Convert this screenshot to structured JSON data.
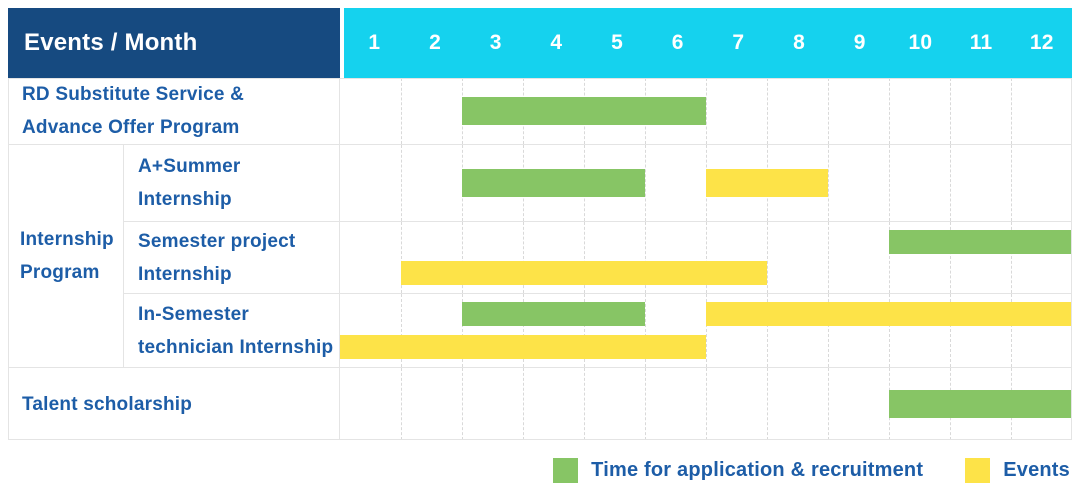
{
  "colors": {
    "header_bg": "#164a80",
    "months_bg": "#15d2ee",
    "recruitment": "#87c565",
    "events": "#fde348",
    "label_text": "#1d5da7"
  },
  "header": {
    "corner_label": "Events / Month"
  },
  "labels": {
    "rd": [
      "RD Substitute Service &",
      "Advance Offer Program"
    ],
    "group_internship": [
      "Internship",
      "Program"
    ],
    "a_summer": [
      "A+Summer",
      "Internship"
    ],
    "semester": [
      "Semester project",
      "Internship"
    ],
    "in_semester": [
      "In-Semester",
      "technician Internship"
    ],
    "talent": [
      "Talent scholarship"
    ]
  },
  "legend": {
    "recruitment_label": "Time for application & recruitment",
    "events_label": "Events"
  },
  "chart_data": {
    "type": "gantt",
    "title": "Events / Month",
    "x_axis": {
      "label": "Month",
      "ticks": [
        "1",
        "2",
        "3",
        "4",
        "5",
        "6",
        "7",
        "8",
        "9",
        "10",
        "11",
        "12"
      ],
      "range": [
        1,
        12
      ]
    },
    "legend": [
      {
        "name": "Time for application & recruitment",
        "color": "#87c565"
      },
      {
        "name": "Events",
        "color": "#fde348"
      }
    ],
    "rows": [
      {
        "group": "",
        "label": "RD Substitute Service & Advance Offer Program",
        "bars": [
          {
            "series": "Time for application & recruitment",
            "start_month": 3,
            "end_month": 6,
            "line": 0
          }
        ]
      },
      {
        "group": "Internship Program",
        "label": "A+Summer Internship",
        "bars": [
          {
            "series": "Time for application & recruitment",
            "start_month": 3,
            "end_month": 5,
            "line": 0
          },
          {
            "series": "Events",
            "start_month": 7,
            "end_month": 8,
            "line": 0
          }
        ]
      },
      {
        "group": "Internship Program",
        "label": "Semester project Internship",
        "bars": [
          {
            "series": "Time for application & recruitment",
            "start_month": 10,
            "end_month": 12,
            "line": 0
          },
          {
            "series": "Events",
            "start_month": 2,
            "end_month": 7,
            "line": 1
          }
        ]
      },
      {
        "group": "Internship Program",
        "label": "In-Semester technician Internship",
        "bars": [
          {
            "series": "Time for application & recruitment",
            "start_month": 3,
            "end_month": 5,
            "line": 0
          },
          {
            "series": "Events",
            "start_month": 7,
            "end_month": 12,
            "line": 0
          },
          {
            "series": "Events",
            "start_month": 1,
            "end_month": 6,
            "line": 1
          }
        ]
      },
      {
        "group": "",
        "label": "Talent scholarship",
        "bars": [
          {
            "series": "Time for application & recruitment",
            "start_month": 10,
            "end_month": 12,
            "line": 0
          }
        ]
      }
    ]
  }
}
